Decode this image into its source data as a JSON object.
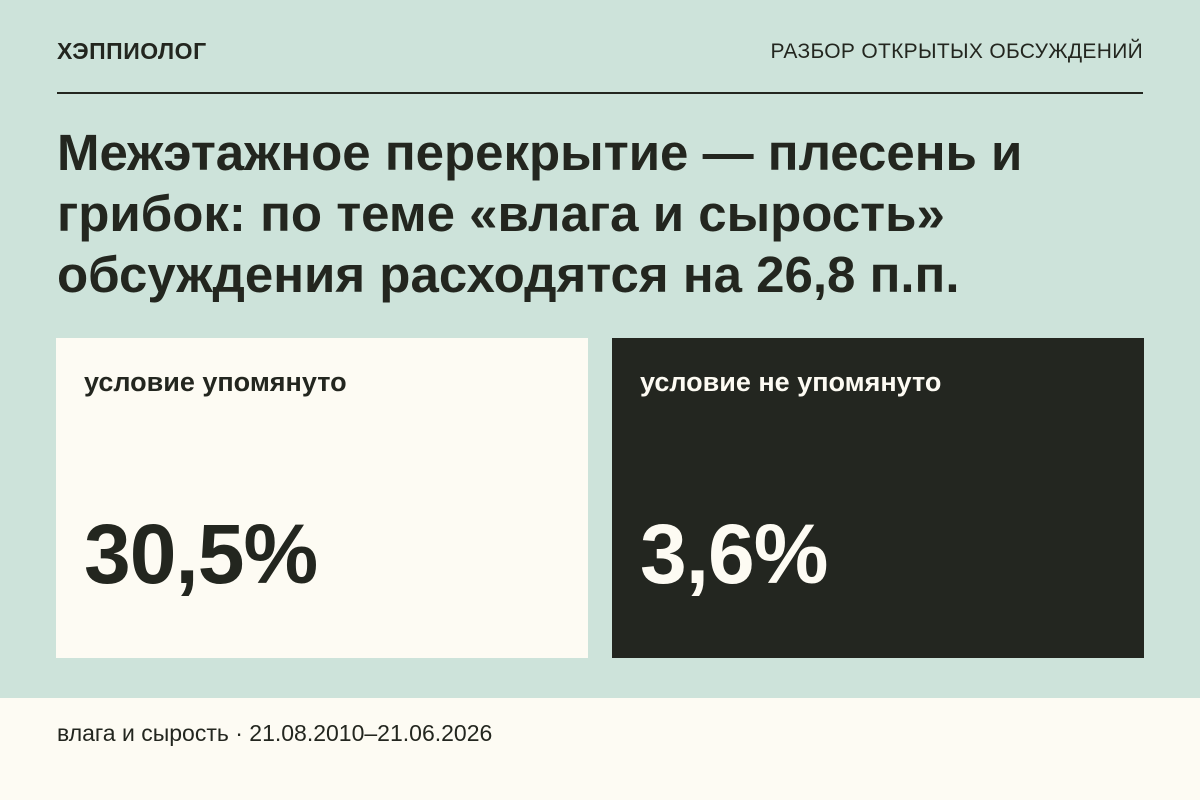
{
  "header": {
    "brand": "ХЭППИОЛОГ",
    "section": "РАЗБОР ОТКРЫТЫХ ОБСУЖДЕНИЙ"
  },
  "headline": "Межэтажное перекрытие — плесень и грибок: по теме «влага и сырость» обсуждения расходятся на 26,8 п.п.",
  "cards": [
    {
      "label": "условие упомянуто",
      "value": "30,5%"
    },
    {
      "label": "условие не упомянуто",
      "value": "3,6%"
    }
  ],
  "footer": {
    "text": "влага и сырость · 21.08.2010–21.06.2026"
  },
  "colors": {
    "background": "#cde3da",
    "card_light": "#fdfbf3",
    "card_dark": "#232620",
    "text_dark": "#23261f"
  }
}
